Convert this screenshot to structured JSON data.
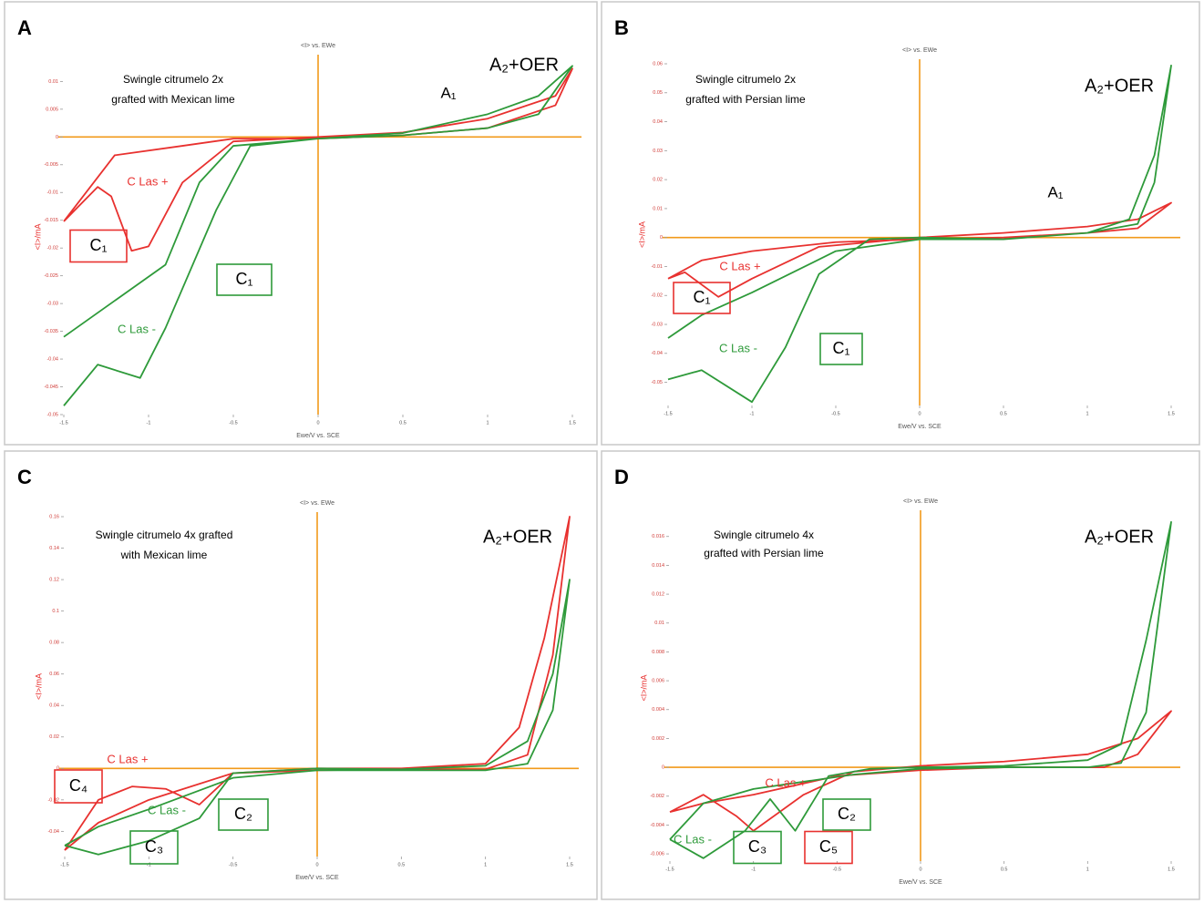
{
  "chart_data": [
    {
      "type": "line",
      "panel_label": "A",
      "header": "<I> vs. EWe",
      "xlabel": "Ewe/V vs. SCE",
      "ylabel": "<I>/mA",
      "xlim": [
        -1.5,
        1.5
      ],
      "xticks": [
        -1.5,
        -1,
        -0.5,
        0,
        0.5,
        1,
        1.5
      ],
      "ylim": [
        -0.05,
        0.014
      ],
      "yticks": [
        -0.05,
        -0.045,
        -0.04,
        -0.035,
        -0.03,
        -0.025,
        -0.02,
        -0.015,
        -0.01,
        -0.005,
        0,
        0.005,
        0.01
      ],
      "series": [
        {
          "color": "#e8312f",
          "x": [
            -1.5,
            -1.3,
            -1.22,
            -1.1,
            -1.0,
            -0.8,
            -0.5,
            0,
            0.5,
            1,
            1.4,
            1.5,
            1.4,
            1,
            0.5,
            0,
            -0.5,
            -0.8,
            -1.2,
            -1.5
          ],
          "values": [
            -0.0152,
            -0.009,
            -0.0107,
            -0.0205,
            -0.0197,
            -0.0082,
            -0.0008,
            0,
            0.0008,
            0.0033,
            0.0074,
            0.0123,
            0.0057,
            0.0016,
            0.0003,
            -0.0003,
            -0.0003,
            -0.0016,
            -0.0033,
            -0.0152
          ]
        },
        {
          "color": "#2e9a3a",
          "x": [
            -1.5,
            -1.3,
            -1.05,
            -0.9,
            -0.6,
            -0.4,
            0,
            0.5,
            1,
            1.3,
            1.5,
            1.3,
            1,
            0.5,
            0,
            -0.5,
            -0.7,
            -0.9,
            -1.2,
            -1.5
          ],
          "values": [
            -0.0484,
            -0.041,
            -0.0434,
            -0.0344,
            -0.0131,
            -0.0016,
            -0.0003,
            0.0007,
            0.0041,
            0.0074,
            0.0128,
            0.0041,
            0.0016,
            0.0003,
            -0.0003,
            -0.0016,
            -0.0082,
            -0.023,
            -0.0295,
            -0.036
          ]
        }
      ],
      "annotations": [
        {
          "text": "Swingle citrumelo 2x",
          "color": "#000000"
        },
        {
          "text": "grafted with Mexican lime",
          "color": "#000000"
        },
        {
          "text": "A₂+OER",
          "color": "#000000"
        },
        {
          "text": "A₁",
          "color": "#000000"
        },
        {
          "text": "C Las +",
          "color": "#e8312f"
        },
        {
          "text": "C Las -",
          "color": "#2e9a3a"
        },
        {
          "text": "C₁",
          "color": "#e8312f",
          "boxed": true
        },
        {
          "text": "C₁",
          "color": "#2e9a3a",
          "boxed": true
        }
      ]
    },
    {
      "type": "line",
      "panel_label": "B",
      "header": "<I> vs. EWe",
      "xlabel": "Ewe/V vs. SCE",
      "ylabel": "<I>/mA",
      "xlim": [
        -1.5,
        1.5
      ],
      "xticks": [
        -1.5,
        -1,
        -0.5,
        0,
        0.5,
        1,
        1.5
      ],
      "ylim": [
        -0.058,
        0.06
      ],
      "yticks": [
        -0.05,
        -0.04,
        -0.03,
        -0.02,
        -0.01,
        0,
        0.01,
        0.02,
        0.03,
        0.04,
        0.05,
        0.06
      ],
      "series": [
        {
          "color": "#e8312f",
          "x": [
            -1.5,
            -1.4,
            -1.2,
            -1.0,
            -0.6,
            0,
            0.5,
            1,
            1.3,
            1.5,
            1.3,
            1,
            0.5,
            0,
            -0.5,
            -1.0,
            -1.3,
            -1.5
          ],
          "values": [
            -0.0142,
            -0.012,
            -0.0205,
            -0.0142,
            -0.0032,
            0,
            0.0016,
            0.0038,
            0.0063,
            0.012,
            0.0032,
            0.0016,
            0,
            -0.0006,
            -0.0016,
            -0.0047,
            -0.0079,
            -0.0142
          ]
        },
        {
          "color": "#2e9a3a",
          "x": [
            -1.5,
            -1.3,
            -1.0,
            -0.8,
            -0.6,
            -0.3,
            0,
            0.5,
            1,
            1.25,
            1.4,
            1.5,
            1.4,
            1.3,
            1,
            0.5,
            0,
            -0.5,
            -1.0,
            -1.3,
            -1.5
          ],
          "values": [
            -0.049,
            -0.0458,
            -0.0568,
            -0.0379,
            -0.0126,
            -0.0006,
            0,
            -0.0006,
            0.0016,
            0.0063,
            0.0284,
            0.0594,
            0.019,
            0.0047,
            0.0016,
            -0.0006,
            -0.0006,
            -0.0047,
            -0.019,
            -0.0268,
            -0.0347
          ]
        }
      ],
      "annotations": [
        {
          "text": "Swingle citrumelo 2x",
          "color": "#000000"
        },
        {
          "text": "grafted with Persian lime",
          "color": "#000000"
        },
        {
          "text": "A₂+OER",
          "color": "#000000"
        },
        {
          "text": "A₁",
          "color": "#000000"
        },
        {
          "text": "C Las +",
          "color": "#e8312f"
        },
        {
          "text": "C Las -",
          "color": "#2e9a3a"
        },
        {
          "text": "C₁",
          "color": "#e8312f",
          "boxed": true
        },
        {
          "text": "C₁",
          "color": "#2e9a3a",
          "boxed": true
        }
      ]
    },
    {
      "type": "line",
      "panel_label": "C",
      "header": "<I> vs. EWe",
      "xlabel": "Ewe/V vs. SCE",
      "ylabel": "<I>/mA",
      "xlim": [
        -1.5,
        1.5
      ],
      "xticks": [
        -1.5,
        -1,
        -0.5,
        0,
        0.5,
        1,
        1.5
      ],
      "ylim": [
        -0.056,
        0.16
      ],
      "yticks": [
        -0.04,
        -0.02,
        0,
        0.02,
        0.04,
        0.06,
        0.08,
        0.1,
        0.12,
        0.14,
        0.16
      ],
      "series": [
        {
          "color": "#e8312f",
          "x": [
            -1.5,
            -1.3,
            -1.1,
            -0.9,
            -0.7,
            -0.5,
            0,
            0.5,
            1,
            1.2,
            1.35,
            1.5,
            1.4,
            1.25,
            1,
            0.5,
            0,
            -0.5,
            -1.0,
            -1.3,
            -1.5
          ],
          "values": [
            -0.052,
            -0.02,
            -0.0115,
            -0.013,
            -0.023,
            -0.003,
            0,
            0,
            0.003,
            0.026,
            0.083,
            0.16,
            0.072,
            0.0086,
            -0.0006,
            -0.0006,
            -0.0012,
            -0.003,
            -0.02,
            -0.0345,
            -0.052
          ]
        },
        {
          "color": "#2e9a3a",
          "x": [
            -1.5,
            -1.3,
            -1.0,
            -0.7,
            -0.5,
            0,
            0.5,
            1,
            1.25,
            1.4,
            1.5,
            1.4,
            1.25,
            1,
            0.5,
            0,
            -0.5,
            -1.0,
            -1.3,
            -1.5
          ],
          "values": [
            -0.049,
            -0.0547,
            -0.046,
            -0.0317,
            -0.003,
            0,
            -0.0006,
            0.0017,
            0.0173,
            0.06,
            0.12,
            0.037,
            0.003,
            -0.0012,
            -0.0012,
            -0.0012,
            -0.006,
            -0.026,
            -0.037,
            -0.049
          ]
        }
      ],
      "annotations": [
        {
          "text": "Swingle citrumelo 4x grafted",
          "color": "#000000"
        },
        {
          "text": "with Mexican lime",
          "color": "#000000"
        },
        {
          "text": "A₂+OER",
          "color": "#000000"
        },
        {
          "text": "C Las +",
          "color": "#e8312f"
        },
        {
          "text": "C Las -",
          "color": "#2e9a3a"
        },
        {
          "text": "C₄",
          "color": "#e8312f",
          "boxed": true
        },
        {
          "text": "C₂",
          "color": "#2e9a3a",
          "boxed": true
        },
        {
          "text": "C₃",
          "color": "#2e9a3a",
          "boxed": true
        }
      ]
    },
    {
      "type": "line",
      "panel_label": "D",
      "header": "<I> vs. EWe",
      "xlabel": "Ewe/V vs. SCE",
      "ylabel": "<I>/mA",
      "xlim": [
        -1.5,
        1.5
      ],
      "xticks": [
        -1.5,
        -1,
        -0.5,
        0,
        0.5,
        1,
        1.5
      ],
      "ylim": [
        -0.0065,
        0.0175
      ],
      "yticks": [
        -0.006,
        -0.004,
        -0.002,
        0,
        0.002,
        0.004,
        0.006,
        0.008,
        0.01,
        0.012,
        0.014,
        0.016
      ],
      "series": [
        {
          "color": "#e8312f",
          "x": [
            -1.5,
            -1.3,
            -1.1,
            -1.0,
            -0.7,
            -0.4,
            0,
            0.5,
            1,
            1.3,
            1.5,
            1.3,
            1.1,
            0.5,
            0,
            -0.5,
            -1.0,
            -1.3,
            -1.5
          ],
          "values": [
            -0.0031,
            -0.0019,
            -0.0034,
            -0.0044,
            -0.0019,
            -0.0003,
            0.0001,
            0.0004,
            0.0009,
            0.002,
            0.0039,
            0.0009,
            0,
            0,
            -0.0002,
            -0.0006,
            -0.0019,
            -0.0025,
            -0.0031
          ]
        },
        {
          "color": "#2e9a3a",
          "x": [
            -1.5,
            -1.3,
            -1.05,
            -0.9,
            -0.75,
            -0.55,
            -0.3,
            0,
            0.5,
            1,
            1.2,
            1.35,
            1.5,
            1.35,
            1.2,
            1,
            0.5,
            0,
            -0.4,
            -1.0,
            -1.3,
            -1.5
          ],
          "values": [
            -0.005,
            -0.0063,
            -0.0044,
            -0.0022,
            -0.0044,
            -0.0006,
            -0.0001,
            0,
            0.0001,
            0.0005,
            0.0016,
            0.0088,
            0.017,
            0.0038,
            0.0003,
            0,
            0,
            -0.0001,
            -0.0005,
            -0.0015,
            -0.0025,
            -0.005
          ]
        }
      ],
      "annotations": [
        {
          "text": "Swingle citrumelo 4x",
          "color": "#000000"
        },
        {
          "text": "grafted with Persian lime",
          "color": "#000000"
        },
        {
          "text": "A₂+OER",
          "color": "#000000"
        },
        {
          "text": "C Las +",
          "color": "#e8312f"
        },
        {
          "text": "C Las -",
          "color": "#2e9a3a"
        },
        {
          "text": "C₂",
          "color": "#2e9a3a",
          "boxed": true
        },
        {
          "text": "C₃",
          "color": "#2e9a3a",
          "boxed": true
        },
        {
          "text": "C₅",
          "color": "#e8312f",
          "boxed": true
        }
      ]
    }
  ]
}
